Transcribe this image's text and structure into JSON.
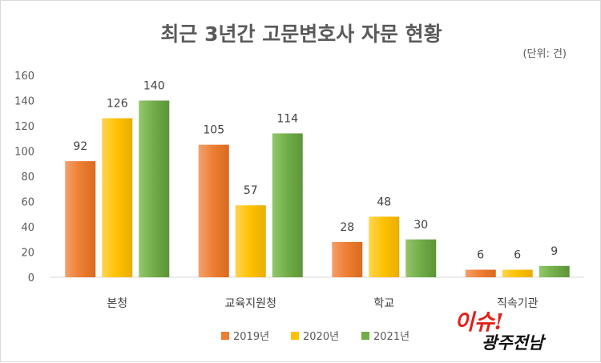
{
  "chart_data": {
    "type": "bar",
    "title": "최근 3년간 고문변호사 자문 현황",
    "unit_note": "(단위: 건)",
    "categories": [
      "본청",
      "교육지원청",
      "학교",
      "직속기관"
    ],
    "series": [
      {
        "name": "2019년",
        "color": "#ed7d31",
        "values": [
          92,
          105,
          28,
          6
        ]
      },
      {
        "name": "2020년",
        "color": "#ffc000",
        "values": [
          126,
          57,
          48,
          6
        ]
      },
      {
        "name": "2021년",
        "color": "#70ad47",
        "values": [
          140,
          114,
          30,
          9
        ]
      }
    ],
    "yticks": [
      0,
      20,
      40,
      60,
      80,
      100,
      120,
      140,
      160
    ],
    "ylim": [
      0,
      160
    ],
    "grid": false,
    "legend": "bottom"
  },
  "logo": {
    "line1": "이슈!",
    "line2": "광주전남"
  }
}
